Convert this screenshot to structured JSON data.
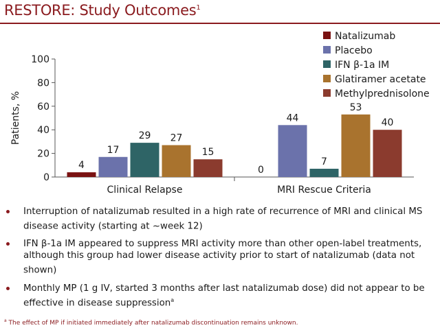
{
  "title": {
    "text": "RESTORE: Study Outcomes",
    "superscript": "1"
  },
  "colors": {
    "title": "#8a1a1e",
    "rule": "#8a1a1e",
    "bullet": "#8a1a1e"
  },
  "chart_data": {
    "type": "bar",
    "title": "",
    "xlabel": "",
    "ylabel": "Patients, %",
    "ylim": [
      0,
      100
    ],
    "yticks": [
      "0",
      "20",
      "40",
      "60",
      "80",
      "100"
    ],
    "grid": false,
    "legend_position": "top-right",
    "categories": [
      "Clinical Relapse",
      "MRI Rescue Criteria"
    ],
    "series": [
      {
        "name": "Natalizumab",
        "color": "#7a1212",
        "values": [
          4,
          0
        ]
      },
      {
        "name": "Placebo",
        "color": "#6b72ab",
        "values": [
          17,
          44
        ]
      },
      {
        "name": "IFN β-1a IM",
        "color": "#2e6466",
        "values": [
          29,
          7
        ]
      },
      {
        "name": "Glatiramer acetate",
        "color": "#a9732e",
        "values": [
          27,
          53
        ]
      },
      {
        "name": "Methylprednisolone",
        "color": "#8b3b2e",
        "values": [
          15,
          40
        ]
      }
    ]
  },
  "bullets": [
    {
      "text": "Interruption of natalizumab resulted in a high rate of recurrence of MRI and clinical MS disease activity (starting at ~week 12)",
      "sup": ""
    },
    {
      "text": "IFN β-1a IM appeared to suppress MRI activity more than other open-label treatments, although this group had lower disease activity prior to start of natalizumab (data not shown)",
      "sup": ""
    },
    {
      "text": "Monthly MP (1 g IV, started 3 months after last natalizumab dose) did not appear to be effective in disease suppression",
      "sup": "a"
    }
  ],
  "footnote": {
    "marker": "a",
    "text": " The effect of MP if initiated immediately after natalizumab discontinuation remains unknown."
  }
}
